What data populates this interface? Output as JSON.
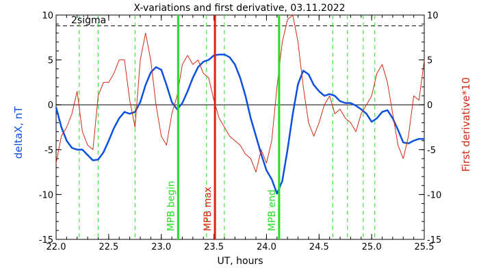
{
  "chart_data": {
    "type": "line",
    "title": "X-variations and first derivative, 03.11.2022",
    "xlabel": "UT, hours",
    "ylabel_left": "deltaX, nT",
    "ylabel_right": "First derivative*10",
    "xlim": [
      22.0,
      25.5
    ],
    "ylim": [
      -15,
      10
    ],
    "x_ticks": [
      "22.0",
      "22.5",
      "23.0",
      "23.5",
      "24.0",
      "24.5",
      "25.0",
      "25.5"
    ],
    "y_ticks": [
      "10",
      "5",
      "0",
      "-5",
      "-10",
      "-15"
    ],
    "sigma_level": 8.8,
    "sigma_label": "2sigma",
    "colors": {
      "deltaX": "#0b50e0",
      "derivative": "#d02a10",
      "mpb": "#22dd22",
      "max": "#e22010",
      "guides": "#22dd22",
      "sigma": "#000000",
      "axes": "#000000"
    },
    "series": [
      {
        "key": "deltaX",
        "axis": "left",
        "x": [
          22.0,
          22.05,
          22.1,
          22.15,
          22.2,
          22.25,
          22.3,
          22.35,
          22.4,
          22.45,
          22.5,
          22.55,
          22.6,
          22.65,
          22.7,
          22.75,
          22.8,
          22.85,
          22.9,
          22.95,
          23.0,
          23.05,
          23.1,
          23.15,
          23.2,
          23.25,
          23.3,
          23.35,
          23.4,
          23.45,
          23.5,
          23.55,
          23.6,
          23.65,
          23.7,
          23.75,
          23.8,
          23.85,
          23.9,
          23.95,
          24.0,
          24.05,
          24.1,
          24.15,
          24.2,
          24.25,
          24.3,
          24.35,
          24.4,
          24.45,
          24.5,
          24.55,
          24.6,
          24.65,
          24.7,
          24.75,
          24.8,
          24.85,
          24.9,
          24.95,
          25.0,
          25.05,
          25.1,
          25.15,
          25.2,
          25.25,
          25.3,
          25.35,
          25.4,
          25.45,
          25.5
        ],
        "y": [
          -0.3,
          -2.5,
          -4.0,
          -4.8,
          -5.0,
          -5.0,
          -5.6,
          -6.2,
          -6.1,
          -5.3,
          -4.0,
          -2.6,
          -1.5,
          -0.8,
          -1.0,
          -0.8,
          0.3,
          2.2,
          3.6,
          4.2,
          3.9,
          2.2,
          0.3,
          -0.5,
          0.2,
          1.5,
          3.0,
          4.2,
          4.8,
          5.0,
          5.5,
          5.6,
          5.6,
          5.3,
          4.5,
          3.0,
          1.0,
          -1.5,
          -3.5,
          -5.5,
          -7.3,
          -8.3,
          -9.9,
          -8.5,
          -5.0,
          -1.0,
          2.3,
          3.8,
          3.4,
          2.2,
          1.5,
          1.0,
          1.2,
          1.0,
          0.4,
          0.2,
          0.2,
          -0.1,
          -0.5,
          -1.0,
          -1.9,
          -1.5,
          -0.8,
          -0.6,
          -1.5,
          -2.8,
          -4.2,
          -4.3,
          -4.0,
          -3.8,
          -3.8
        ]
      },
      {
        "key": "derivative",
        "axis": "right",
        "x": [
          22.0,
          22.05,
          22.1,
          22.15,
          22.2,
          22.25,
          22.3,
          22.35,
          22.4,
          22.45,
          22.5,
          22.55,
          22.6,
          22.65,
          22.7,
          22.75,
          22.8,
          22.85,
          22.9,
          22.95,
          23.0,
          23.05,
          23.1,
          23.15,
          23.2,
          23.25,
          23.3,
          23.35,
          23.4,
          23.45,
          23.5,
          23.55,
          23.6,
          23.65,
          23.7,
          23.75,
          23.8,
          23.85,
          23.9,
          23.95,
          24.0,
          24.05,
          24.1,
          24.15,
          24.2,
          24.25,
          24.3,
          24.35,
          24.4,
          24.45,
          24.5,
          24.55,
          24.6,
          24.65,
          24.7,
          24.75,
          24.8,
          24.85,
          24.9,
          24.95,
          25.0,
          25.05,
          25.1,
          25.15,
          25.2,
          25.25,
          25.3,
          25.35,
          25.4,
          25.45,
          25.5
        ],
        "y": [
          -6.5,
          -3.5,
          -2.5,
          -1.0,
          1.5,
          -3.0,
          -4.5,
          -5.0,
          1.0,
          2.5,
          2.5,
          3.5,
          5.0,
          5.0,
          0.5,
          -2.5,
          5.0,
          8.0,
          5.0,
          0.0,
          -3.5,
          -4.5,
          -1.0,
          1.0,
          4.5,
          5.5,
          4.5,
          5.0,
          3.5,
          3.0,
          0.5,
          -1.5,
          -2.5,
          -3.5,
          -4.0,
          -4.5,
          -5.5,
          -6.0,
          -7.5,
          -5.0,
          -6.5,
          -4.0,
          2.0,
          7.0,
          9.5,
          10.0,
          7.0,
          2.0,
          -2.0,
          -3.5,
          -2.0,
          0.0,
          1.0,
          -1.0,
          -0.5,
          -1.5,
          -2.0,
          -3.0,
          -1.0,
          0.0,
          1.0,
          3.5,
          4.5,
          2.5,
          -1.0,
          -4.5,
          -6.0,
          -3.5,
          1.0,
          0.5,
          5.0
        ]
      }
    ],
    "vertical_guides": [
      22.22,
      22.4,
      22.75,
      23.43,
      23.6,
      24.63,
      24.77,
      24.92,
      25.03
    ],
    "markers": [
      {
        "key": "mpb_begin",
        "x": 23.16,
        "label": "MPB begin"
      },
      {
        "key": "mpb_max",
        "x": 23.51,
        "label": "MPB max"
      },
      {
        "key": "mpb_end",
        "x": 24.12,
        "label": "MPB end"
      }
    ]
  }
}
